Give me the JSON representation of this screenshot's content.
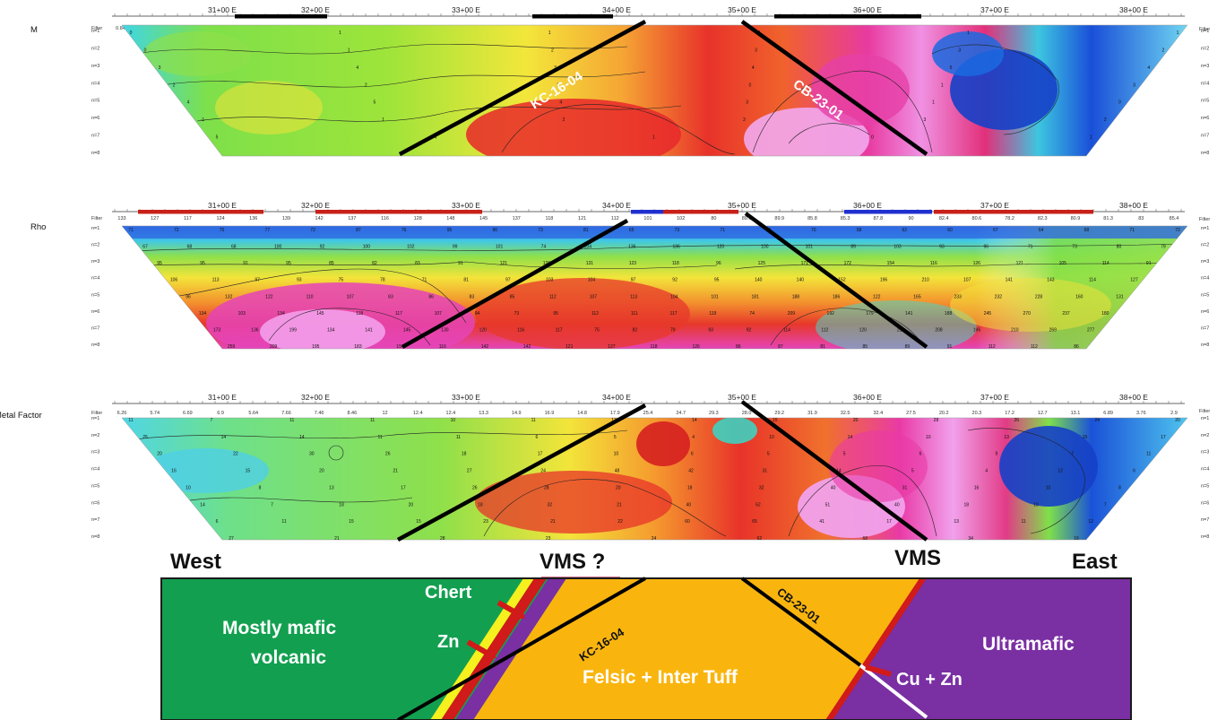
{
  "filter_label": "Filter",
  "n_labels": [
    "n=1",
    "n=2",
    "n=3",
    "n=4",
    "n=5",
    "n=6",
    "n=7",
    "n=8"
  ],
  "stations": [
    "31+00 E",
    "32+00 E",
    "33+00 E",
    "34+00 E",
    "35+00 E",
    "36+00 E",
    "37+00 E",
    "38+00 E"
  ],
  "panels": [
    {
      "title": "M",
      "filter_values": [
        "0.844",
        "0.782",
        "0.746",
        "0.76",
        "0.723",
        "0.978",
        "1.01",
        "1.13",
        "1.44",
        "1.59",
        "1.62",
        "1.65",
        "1.85",
        "1.9",
        "1.81",
        "1.97",
        "2.64",
        "2.54",
        "2.45",
        "2.6",
        "2.53",
        "2.79",
        "2.76",
        "2.78",
        "2.44",
        "1.4",
        "1.67",
        "1.46",
        "1.24",
        "1.2",
        "0.838",
        "0.349",
        "0.179"
      ],
      "contour_values": [
        "0",
        "1",
        "1",
        "2",
        "1",
        "1",
        "0",
        "1",
        "2",
        "3",
        "3",
        "2",
        "3",
        "4",
        "3",
        "4",
        "5",
        "4",
        "2",
        "2",
        "1",
        "0",
        "1",
        "3",
        "4",
        "5",
        "4",
        "3",
        "1",
        "0",
        "-1",
        "1",
        "2",
        "3",
        "3",
        "2",
        "5",
        "4",
        "1",
        "0",
        "1"
      ]
    },
    {
      "title": "Rho",
      "filter_values": [
        "133",
        "127",
        "117",
        "124",
        "136",
        "139",
        "142",
        "137",
        "116",
        "128",
        "148",
        "145",
        "137",
        "118",
        "121",
        "112",
        "101",
        "102",
        "80",
        "89.6",
        "89.9",
        "85.8",
        "85.3",
        "87.8",
        "90",
        "82.4",
        "80.6",
        "78.2",
        "82.3",
        "80.9",
        "81.3",
        "83",
        "85.4"
      ],
      "contour_values": [
        "71",
        "72",
        "75",
        "77",
        "72",
        "87",
        "76",
        "95",
        "96",
        "73",
        "81",
        "65",
        "73",
        "71",
        "68",
        "70",
        "58",
        "62",
        "60",
        "67",
        "64",
        "68",
        "71",
        "72",
        "67",
        "68",
        "68",
        "100",
        "92",
        "100",
        "102",
        "99",
        "101",
        "74",
        "104",
        "136",
        "136",
        "120",
        "100",
        "101",
        "89",
        "103",
        "93",
        "96",
        "71",
        "73",
        "80",
        "79",
        "95",
        "95",
        "91",
        "95",
        "85",
        "82",
        "83",
        "91",
        "121",
        "126",
        "131",
        "123",
        "118",
        "96",
        "125",
        "171",
        "172",
        "154",
        "116",
        "126",
        "121",
        "105",
        "114",
        "91",
        "106",
        "113",
        "97",
        "93",
        "75",
        "78",
        "71",
        "81",
        "97",
        "103",
        "104",
        "97",
        "92",
        "95",
        "140",
        "140",
        "152",
        "196",
        "210",
        "107",
        "141",
        "143",
        "114",
        "127",
        "96",
        "132",
        "122",
        "110",
        "107",
        "83",
        "86",
        "83",
        "85",
        "112",
        "107",
        "113",
        "104",
        "101",
        "181",
        "188",
        "186",
        "122",
        "165",
        "233",
        "232",
        "228",
        "160",
        "131",
        "134",
        "103",
        "134",
        "145",
        "118",
        "117",
        "107",
        "94",
        "73",
        "95",
        "112",
        "111",
        "117",
        "119",
        "74",
        "209",
        "192",
        "179",
        "141",
        "188",
        "245",
        "270",
        "237",
        "180",
        "173",
        "136",
        "199",
        "134",
        "141",
        "145",
        "130",
        "120",
        "116",
        "117",
        "75",
        "82",
        "79",
        "93",
        "92",
        "114",
        "112",
        "120",
        "212",
        "208",
        "196",
        "210",
        "269",
        "277",
        "259",
        "209",
        "195",
        "183",
        "154",
        "116",
        "142",
        "142",
        "121",
        "127",
        "118",
        "126",
        "86",
        "87",
        "81",
        "85",
        "89",
        "91",
        "112",
        "112",
        "86"
      ]
    },
    {
      "title": "Metal Factor",
      "filter_values": [
        "6.26",
        "5.74",
        "6.69",
        "6.9",
        "5.64",
        "7.66",
        "7.46",
        "8.46",
        "12",
        "12.4",
        "12.4",
        "13.3",
        "14.9",
        "16.9",
        "14.8",
        "17.9",
        "25.4",
        "24.7",
        "29.3",
        "28.0",
        "29.2",
        "31.9",
        "32.5",
        "32.4",
        "27.5",
        "20.2",
        "20.3",
        "17.2",
        "12.7",
        "13.1",
        "6.89",
        "3.76",
        "2.9"
      ],
      "contour_values": [
        "11",
        "7",
        "11",
        "11",
        "10",
        "11",
        "13",
        "14",
        "15",
        "20",
        "28",
        "26",
        "24",
        "20",
        "25",
        "14",
        "14",
        "11",
        "11",
        "6",
        "5",
        "4",
        "10",
        "14",
        "10",
        "13",
        "15",
        "17",
        "20",
        "22",
        "30",
        "26",
        "18",
        "17",
        "10",
        "6",
        "5",
        "5",
        "6",
        "9",
        "7",
        "11",
        "16",
        "15",
        "20",
        "21",
        "27",
        "24",
        "48",
        "42",
        "31",
        "14",
        "5",
        "4",
        "12",
        "6",
        "10",
        "8",
        "13",
        "17",
        "26",
        "28",
        "20",
        "18",
        "32",
        "40",
        "31",
        "16",
        "10",
        "8",
        "14",
        "7",
        "18",
        "20",
        "18",
        "32",
        "21",
        "40",
        "52",
        "51",
        "40",
        "18",
        "10",
        "7",
        "6",
        "11",
        "15",
        "15",
        "23",
        "21",
        "22",
        "60",
        "65",
        "41",
        "17",
        "13",
        "11",
        "12",
        "27",
        "21",
        "28",
        "23",
        "24",
        "62",
        "68",
        "34",
        "16"
      ]
    }
  ],
  "labels": {
    "west": "West",
    "east": "East",
    "vms_q": "VMS ?",
    "vms": "VMS"
  },
  "geology": {
    "mafic_line1": "Mostly mafic",
    "mafic_line2": "volcanic",
    "felsic": "Felsic + Inter Tuff",
    "ultramafic": "Ultramafic",
    "chert": "Chert",
    "zn": "Zn",
    "cuzn": "Cu + Zn"
  },
  "drillholes": {
    "kc": "KC-16-04",
    "cb": "CB-23-01"
  },
  "colors": {
    "mafic": "#12a050",
    "felsic": "#f9b50e",
    "ultramafic": "#7a2fa3",
    "chert": "#f5f01e",
    "sulphide": "#d11a1a",
    "drillhole": "#000000",
    "vms_bar": "#c9708a"
  }
}
